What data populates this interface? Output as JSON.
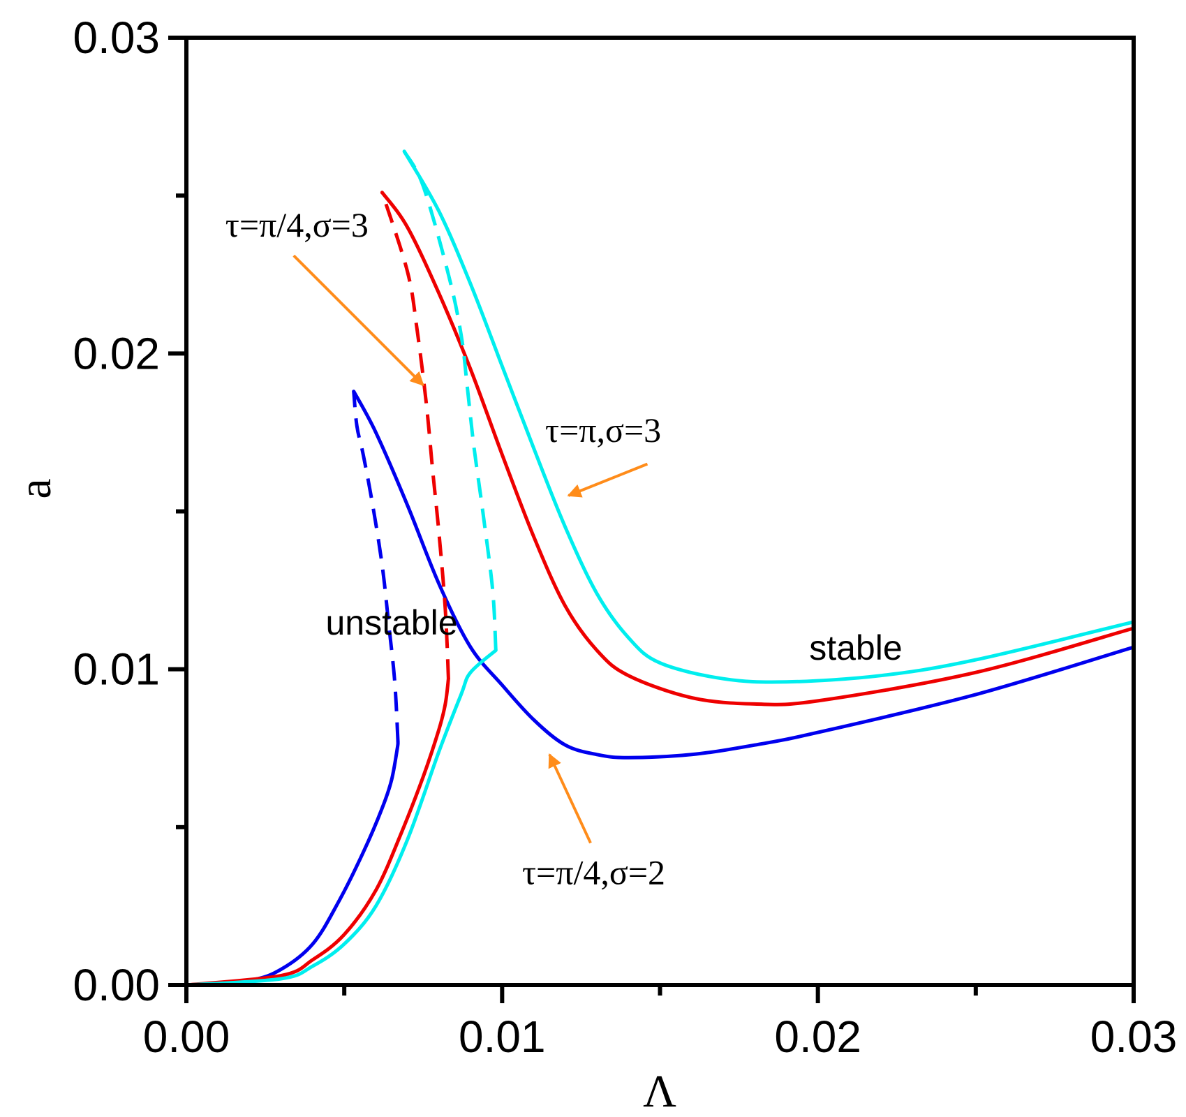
{
  "chart_data": {
    "type": "line",
    "xlabel": "Λ",
    "ylabel": "a",
    "xlim": [
      0,
      0.03
    ],
    "ylim": [
      0,
      0.03
    ],
    "x_ticks": [
      "0.00",
      "0.01",
      "0.02",
      "0.03"
    ],
    "y_ticks": [
      "0.00",
      "0.01",
      "0.02",
      "0.03"
    ],
    "grid": false,
    "colors": {
      "blue": "#0000ee",
      "red": "#ee0000",
      "cyan": "#00eeee",
      "arrow": "#ff8c1a"
    },
    "series": [
      {
        "color": "#0000ee",
        "stable_low": [
          [
            0,
            0
          ],
          [
            0.002,
            0.00015
          ],
          [
            0.003,
            0.0005
          ],
          [
            0.004,
            0.0013
          ],
          [
            0.0048,
            0.0026
          ],
          [
            0.0056,
            0.0042
          ],
          [
            0.0062,
            0.0056
          ],
          [
            0.0065,
            0.0065
          ],
          [
            0.00668,
            0.0075
          ],
          [
            0.0067,
            0.0077
          ]
        ],
        "unstable": [
          [
            0.0067,
            0.0077
          ],
          [
            0.0066,
            0.0096
          ],
          [
            0.0064,
            0.0115
          ],
          [
            0.0062,
            0.0133
          ],
          [
            0.0059,
            0.0152
          ],
          [
            0.0056,
            0.0168
          ],
          [
            0.0054,
            0.0177
          ],
          [
            0.0053,
            0.0188
          ]
        ],
        "stable_high": [
          [
            0.0053,
            0.0188
          ],
          [
            0.006,
            0.0175
          ],
          [
            0.007,
            0.0152
          ],
          [
            0.008,
            0.0127
          ],
          [
            0.009,
            0.0107
          ],
          [
            0.01,
            0.0095
          ],
          [
            0.011,
            0.0084
          ],
          [
            0.012,
            0.0076
          ],
          [
            0.013,
            0.0073
          ],
          [
            0.014,
            0.0072
          ],
          [
            0.016,
            0.0073
          ],
          [
            0.018,
            0.0076
          ],
          [
            0.02,
            0.008
          ],
          [
            0.025,
            0.0092
          ],
          [
            0.03,
            0.0107
          ]
        ]
      },
      {
        "color": "#ee0000",
        "stable_low": [
          [
            0,
            0
          ],
          [
            0.003,
            0.0003
          ],
          [
            0.004,
            0.0008
          ],
          [
            0.005,
            0.0016
          ],
          [
            0.006,
            0.003
          ],
          [
            0.0068,
            0.0048
          ],
          [
            0.0075,
            0.0066
          ],
          [
            0.008,
            0.0081
          ],
          [
            0.0082,
            0.0089
          ],
          [
            0.0083,
            0.0097
          ]
        ],
        "unstable": [
          [
            0.0083,
            0.0097
          ],
          [
            0.0082,
            0.0119
          ],
          [
            0.008,
            0.0143
          ],
          [
            0.0078,
            0.0163
          ],
          [
            0.0076,
            0.0184
          ],
          [
            0.0073,
            0.0208
          ],
          [
            0.007,
            0.0226
          ],
          [
            0.0062,
            0.0251
          ]
        ],
        "stable_high": [
          [
            0.0062,
            0.0251
          ],
          [
            0.007,
            0.024
          ],
          [
            0.008,
            0.0219
          ],
          [
            0.009,
            0.0195
          ],
          [
            0.01,
            0.0168
          ],
          [
            0.011,
            0.0142
          ],
          [
            0.012,
            0.012
          ],
          [
            0.013,
            0.0106
          ],
          [
            0.014,
            0.0098
          ],
          [
            0.016,
            0.0091
          ],
          [
            0.018,
            0.0089
          ],
          [
            0.02,
            0.009
          ],
          [
            0.025,
            0.0099
          ],
          [
            0.03,
            0.0113
          ]
        ]
      },
      {
        "color": "#00eeee",
        "stable_low": [
          [
            0,
            0
          ],
          [
            0.003,
            0.0002
          ],
          [
            0.004,
            0.0006
          ],
          [
            0.005,
            0.0013
          ],
          [
            0.006,
            0.0025
          ],
          [
            0.007,
            0.0046
          ],
          [
            0.008,
            0.0074
          ],
          [
            0.0087,
            0.0092
          ],
          [
            0.009,
            0.0099
          ],
          [
            0.0098,
            0.0106
          ]
        ],
        "unstable": [
          [
            0.0098,
            0.0106
          ],
          [
            0.0097,
            0.0125
          ],
          [
            0.0094,
            0.0149
          ],
          [
            0.0091,
            0.0171
          ],
          [
            0.0089,
            0.0189
          ],
          [
            0.0087,
            0.0206
          ],
          [
            0.0083,
            0.0225
          ],
          [
            0.0075,
            0.0253
          ],
          [
            0.0069,
            0.0264
          ]
        ],
        "stable_high": [
          [
            0.0069,
            0.0264
          ],
          [
            0.008,
            0.0245
          ],
          [
            0.009,
            0.0222
          ],
          [
            0.01,
            0.0196
          ],
          [
            0.011,
            0.017
          ],
          [
            0.012,
            0.0145
          ],
          [
            0.013,
            0.0124
          ],
          [
            0.014,
            0.011
          ],
          [
            0.015,
            0.0102
          ],
          [
            0.017,
            0.0097
          ],
          [
            0.019,
            0.0096
          ],
          [
            0.022,
            0.0098
          ],
          [
            0.025,
            0.0103
          ],
          [
            0.03,
            0.0115
          ]
        ]
      }
    ],
    "annotations": [
      {
        "text": "τ=π/4,σ=3",
        "x": 0.0035,
        "y": 0.0237,
        "arrow_to": [
          0.0075,
          0.019
        ],
        "arrow_from": [
          0.0034,
          0.0231
        ]
      },
      {
        "text": "τ=π,σ=3",
        "x": 0.0132,
        "y": 0.0172,
        "arrow_to": [
          0.0121,
          0.0155
        ],
        "arrow_from": [
          0.0146,
          0.0165
        ]
      },
      {
        "text": "τ=π/4,σ=2",
        "x": 0.0129,
        "y": 0.0032,
        "arrow_to": [
          0.0115,
          0.0073
        ],
        "arrow_from": [
          0.0128,
          0.0045
        ]
      },
      {
        "text": "unstable",
        "x": 0.0065,
        "y": 0.0111
      },
      {
        "text": "stable",
        "x": 0.0212,
        "y": 0.0103
      }
    ]
  }
}
